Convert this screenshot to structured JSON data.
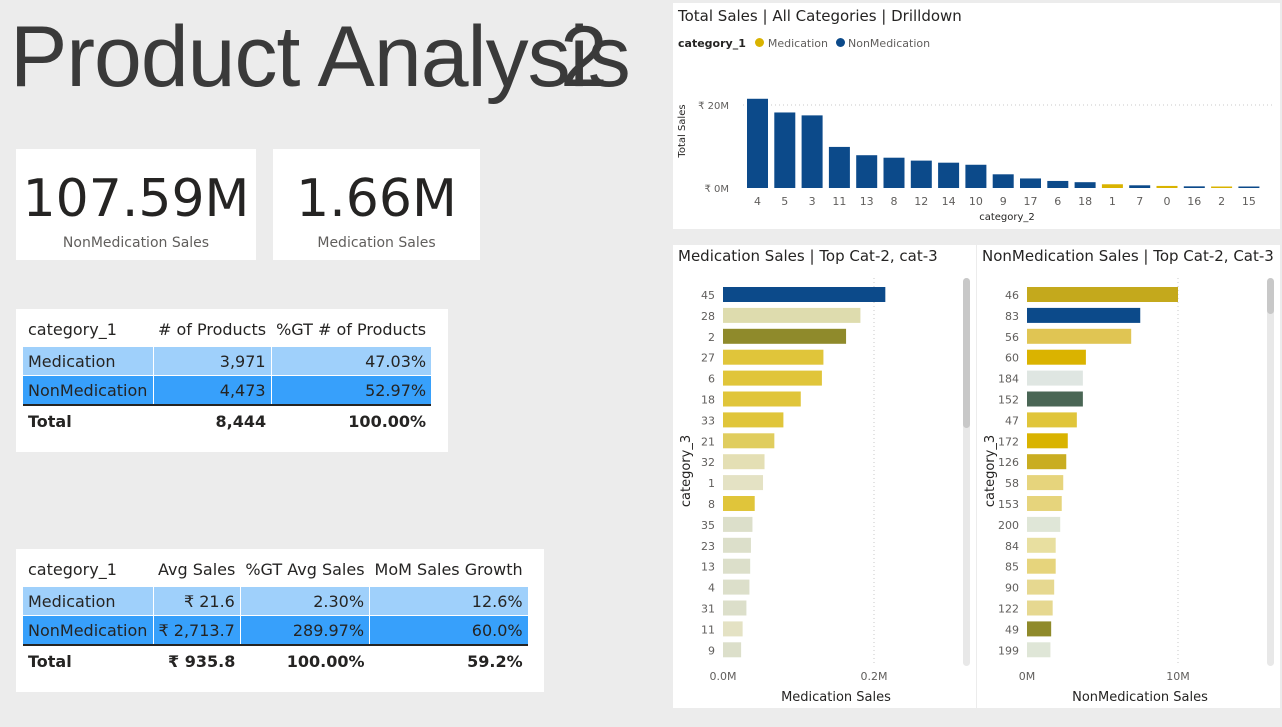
{
  "page": {
    "title": "Product Analysis",
    "title_overlay": "2"
  },
  "kpis": [
    {
      "value": "107.59M",
      "label": "NonMedication Sales"
    },
    {
      "value": "1.66M",
      "label": "Medication Sales"
    }
  ],
  "table1": {
    "headers": [
      "category_1",
      "# of Products",
      "%GT # of Products"
    ],
    "rows": [
      [
        "Medication",
        "3,971",
        "47.03%"
      ],
      [
        "NonMedication",
        "4,473",
        "52.97%"
      ]
    ],
    "total": [
      "Total",
      "8,444",
      "100.00%"
    ]
  },
  "table2": {
    "headers": [
      "category_1",
      "Avg Sales",
      "%GT Avg Sales",
      "MoM Sales Growth"
    ],
    "rows": [
      [
        "Medication",
        "₹ 21.6",
        "2.30%",
        "12.6%"
      ],
      [
        "NonMedication",
        "₹ 2,713.7",
        "289.97%",
        "60.0%"
      ]
    ],
    "total": [
      "Total",
      "₹ 935.8",
      "100.00%",
      "59.2%"
    ]
  },
  "colors": {
    "medication": "#d9b300",
    "nonmedication": "#0c4a8a",
    "row_light": "#9fd0fb",
    "row_dark": "#37a0fb"
  },
  "chart_data": [
    {
      "type": "bar",
      "title": "Total Sales | All Categories | Drilldown",
      "legend_title": "category_1",
      "legend": [
        "Medication",
        "NonMedication"
      ],
      "xlabel": "category_2",
      "ylabel": "Total Sales",
      "yticks": [
        "₹ 20M",
        "₹ 0M"
      ],
      "ylim": [
        0,
        24000000
      ],
      "categories": [
        "4",
        "5",
        "3",
        "11",
        "13",
        "8",
        "12",
        "14",
        "10",
        "9",
        "17",
        "6",
        "18",
        "1",
        "7",
        "0",
        "16",
        "2",
        "15"
      ],
      "series_of_bar": [
        "NonMedication",
        "NonMedication",
        "NonMedication",
        "NonMedication",
        "NonMedication",
        "NonMedication",
        "NonMedication",
        "NonMedication",
        "NonMedication",
        "NonMedication",
        "NonMedication",
        "NonMedication",
        "NonMedication",
        "Medication",
        "NonMedication",
        "Medication",
        "NonMedication",
        "Medication",
        "NonMedication"
      ],
      "values": [
        21500000,
        18200000,
        17500000,
        9900000,
        7900000,
        7300000,
        6600000,
        6100000,
        5600000,
        3300000,
        2300000,
        1700000,
        1400000,
        900000,
        650000,
        500000,
        400000,
        300000,
        250000
      ]
    },
    {
      "type": "bar",
      "orientation": "horizontal",
      "title": "Medication Sales | Top Cat-2, cat-3",
      "ylabel": "category_3",
      "xlabel": "Medication Sales",
      "xticks": [
        "0.0M",
        "0.2M"
      ],
      "categories": [
        "45",
        "28",
        "2",
        "27",
        "6",
        "18",
        "33",
        "21",
        "32",
        "1",
        "8",
        "35",
        "23",
        "13",
        "4",
        "31",
        "11",
        "9"
      ],
      "values": [
        215000,
        182000,
        163000,
        133000,
        131000,
        103000,
        80000,
        68000,
        55000,
        53000,
        42000,
        39000,
        37000,
        36000,
        35000,
        31000,
        26000,
        24000
      ],
      "colors": [
        "#0c4a8a",
        "#dedcae",
        "#8f8a2b",
        "#e0c53a",
        "#e0c53a",
        "#e0c53a",
        "#e0c53a",
        "#e0cd5e",
        "#e4dfb4",
        "#e4e2c4",
        "#e0c53a",
        "#dcdfca",
        "#dcdfca",
        "#dcdfca",
        "#dcdfca",
        "#dcdfca",
        "#e4e2c4",
        "#dcdfca"
      ]
    },
    {
      "type": "bar",
      "orientation": "horizontal",
      "title": "NonMedication Sales | Top Cat-2, Cat-3",
      "ylabel": "category_3",
      "xlabel": "NonMedication Sales",
      "xticks": [
        "0M",
        "10M"
      ],
      "categories": [
        "46",
        "83",
        "56",
        "60",
        "184",
        "152",
        "47",
        "172",
        "126",
        "58",
        "153",
        "200",
        "84",
        "85",
        "90",
        "122",
        "49",
        "199"
      ],
      "values": [
        10000000,
        7500000,
        6900000,
        3900000,
        3700000,
        3700000,
        3300000,
        2700000,
        2600000,
        2400000,
        2300000,
        2200000,
        1900000,
        1900000,
        1800000,
        1700000,
        1600000,
        1550000
      ],
      "colors": [
        "#c4a91c",
        "#0c4a8a",
        "#e0c553",
        "#dab300",
        "#dfe6e2",
        "#4a6655",
        "#e0c53a",
        "#d9b300",
        "#c9ad21",
        "#e6d47c",
        "#e6d47c",
        "#dfe6d7",
        "#e8dfa0",
        "#e6d47c",
        "#e6d890",
        "#e6d890",
        "#8f8a2b",
        "#dfe6d7"
      ]
    }
  ]
}
